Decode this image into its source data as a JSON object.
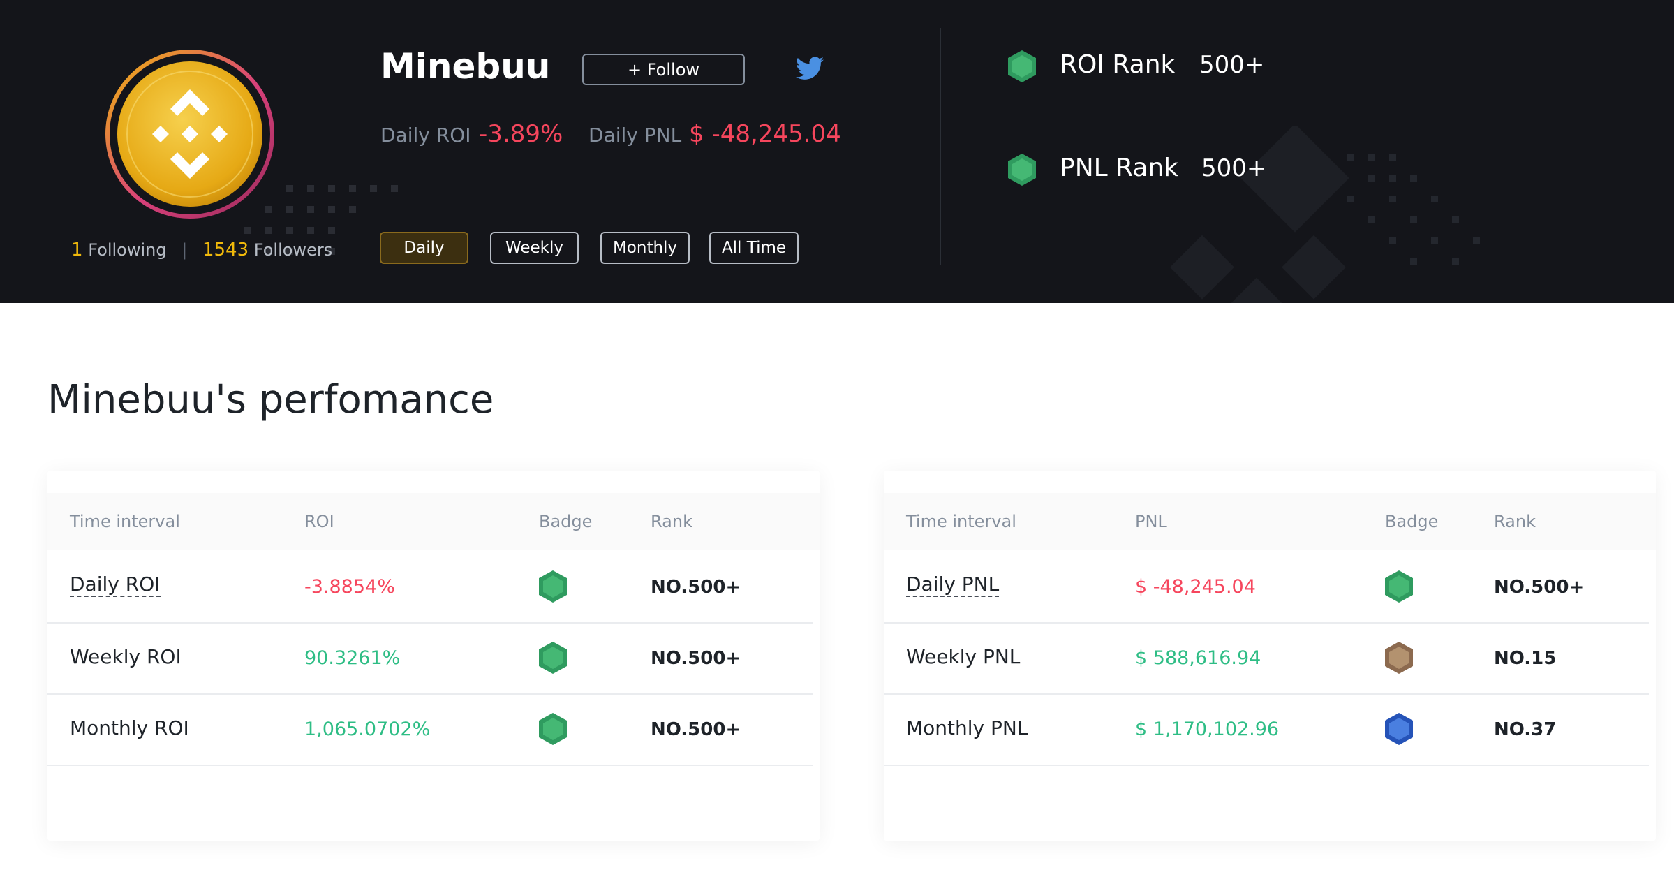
{
  "profile": {
    "username": "Minebuu",
    "follow_label": "+ Follow",
    "following_count": "1",
    "following_label": "Following",
    "separator": "|",
    "followers_count": "1543",
    "followers_label": "Followers",
    "twitter_icon": "twitter-icon",
    "avatar_icon": "binance-coin-icon"
  },
  "stats": {
    "roi_label": "Daily ROI",
    "roi_value": "-3.89%",
    "pnl_label": "Daily PNL",
    "pnl_value": "$ -48,245.04"
  },
  "period_tabs": [
    "Daily",
    "Weekly",
    "Monthly",
    "All Time"
  ],
  "active_tab": "Daily",
  "ranks": {
    "roi_label": "ROI Rank",
    "roi_value": "500+",
    "pnl_label": "PNL Rank",
    "pnl_value": "500+"
  },
  "performance_title": "Minebuu's perfomance",
  "roi_table": {
    "headers": [
      "Time interval",
      "ROI",
      "Badge",
      "Rank"
    ],
    "rows": [
      {
        "interval": "Daily ROI",
        "value": "-3.8854%",
        "badge": "green",
        "rank": "NO.500+"
      },
      {
        "interval": "Weekly ROI",
        "value": "90.3261%",
        "badge": "green",
        "rank": "NO.500+"
      },
      {
        "interval": "Monthly ROI",
        "value": "1,065.0702%",
        "badge": "green",
        "rank": "NO.500+"
      }
    ]
  },
  "pnl_table": {
    "headers": [
      "Time interval",
      "PNL",
      "Badge",
      "Rank"
    ],
    "rows": [
      {
        "interval": "Daily PNL",
        "value": "$ -48,245.04",
        "badge": "green",
        "rank": "NO.500+"
      },
      {
        "interval": "Weekly PNL",
        "value": "$ 588,616.94",
        "badge": "bronze",
        "rank": "NO.15"
      },
      {
        "interval": "Monthly PNL",
        "value": "$ 1,170,102.96",
        "badge": "blue",
        "rank": "NO.37"
      }
    ]
  },
  "colors": {
    "header_bg": "#14151a",
    "negative": "#f6465d",
    "positive": "#2ebd85",
    "accent": "#f0b90b",
    "badge_green": "#3fae6f",
    "badge_bronze": "#a88466",
    "badge_blue": "#3a6fd8"
  }
}
